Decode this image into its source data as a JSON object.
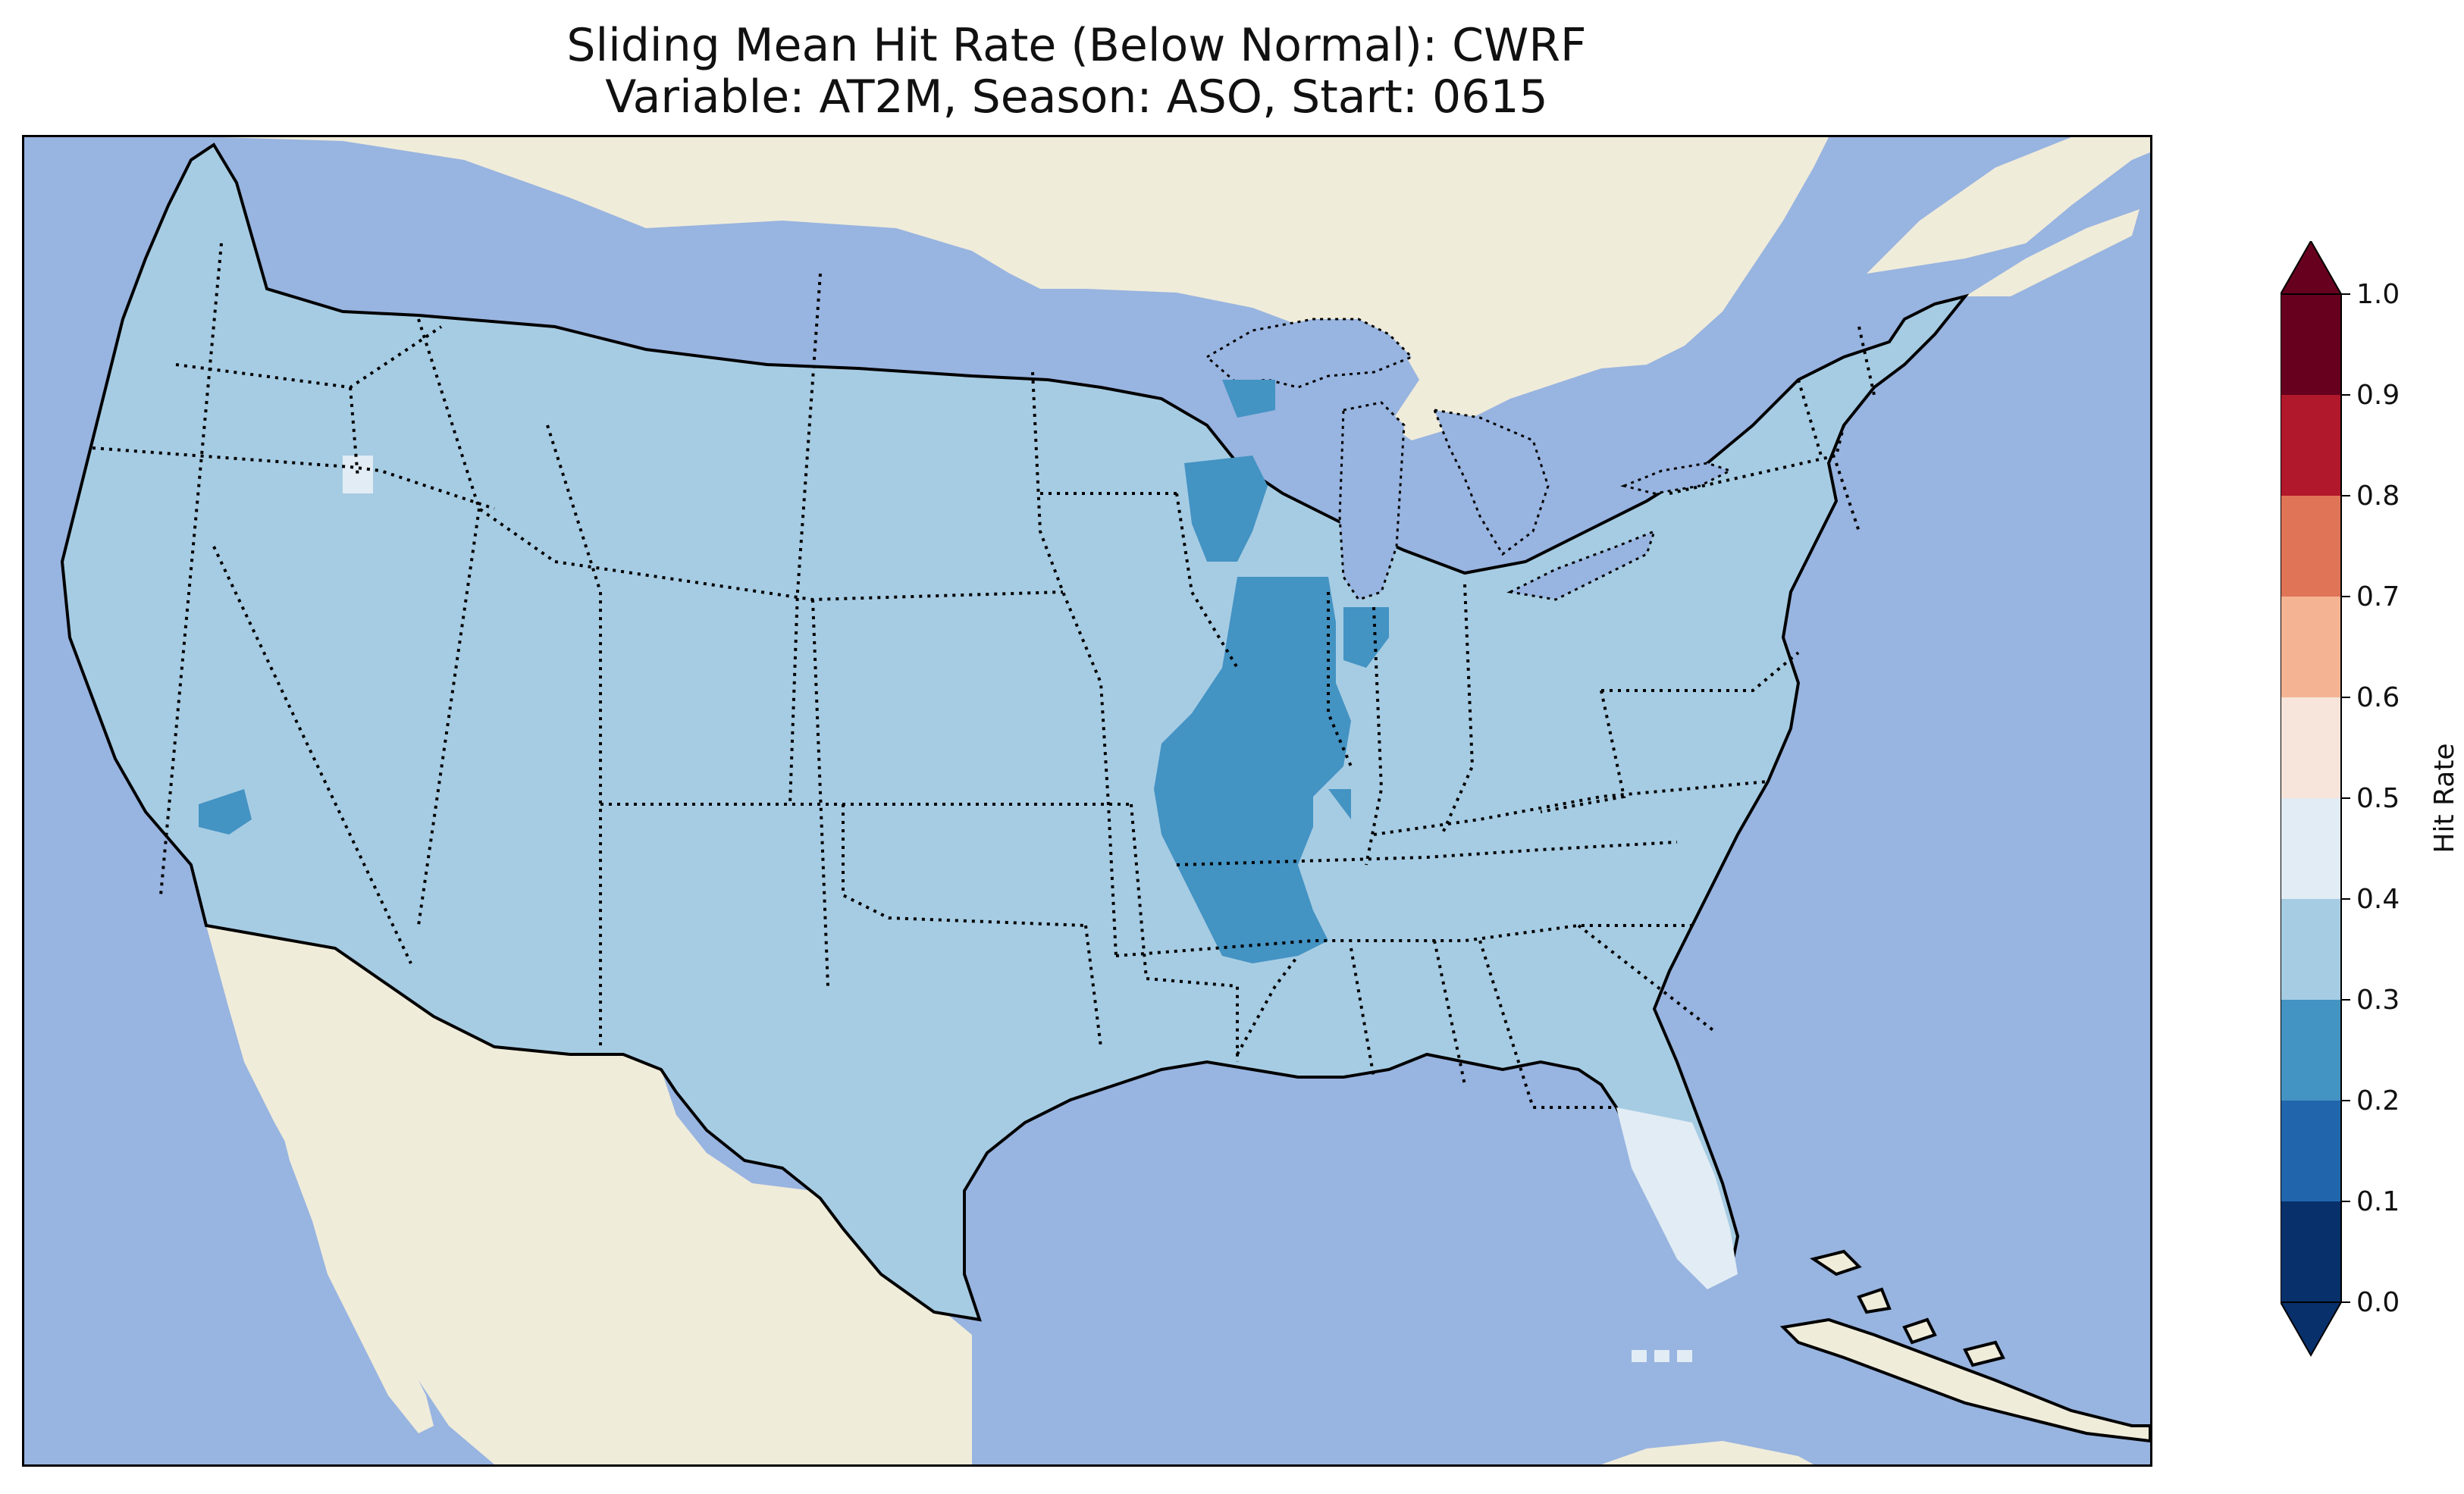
{
  "title": {
    "line1": "Sliding Mean Hit Rate (Below Normal): CWRF",
    "line2": "Variable: AT2M, Season: ASO, Start: 0615"
  },
  "colors": {
    "ocean": "#98b4e0",
    "land": "#f0ecda",
    "lakes": "#98b4e0",
    "coastline": "#000000",
    "state_borders": "#000000"
  },
  "map": {
    "region": "Contiguous United States",
    "borders": "state boundaries dotted, coastline solid",
    "dominant_class": "0.3-0.4"
  },
  "colorbar": {
    "label": "Hit Rate",
    "ticks": [
      "0.0",
      "0.1",
      "0.2",
      "0.3",
      "0.4",
      "0.5",
      "0.6",
      "0.7",
      "0.8",
      "0.9",
      "1.0"
    ],
    "bins": [
      {
        "range": [
          0.0,
          0.1
        ],
        "color": "#08306b"
      },
      {
        "range": [
          0.1,
          0.2
        ],
        "color": "#2166ac"
      },
      {
        "range": [
          0.2,
          0.3
        ],
        "color": "#4393c3"
      },
      {
        "range": [
          0.3,
          0.4
        ],
        "color": "#a6cce3"
      },
      {
        "range": [
          0.4,
          0.5
        ],
        "color": "#e1ecf4"
      },
      {
        "range": [
          0.5,
          0.6
        ],
        "color": "#f7e4da"
      },
      {
        "range": [
          0.6,
          0.7
        ],
        "color": "#f4b494"
      },
      {
        "range": [
          0.7,
          0.8
        ],
        "color": "#df7456"
      },
      {
        "range": [
          0.8,
          0.9
        ],
        "color": "#b2182b"
      },
      {
        "range": [
          0.9,
          1.0
        ],
        "color": "#67001f"
      }
    ],
    "extend": "both"
  },
  "chart_data": {
    "type": "heatmap",
    "title": "Sliding Mean Hit Rate (Below Normal): CWRF\nVariable: AT2M, Season: ASO, Start: 0615",
    "colorbar_label": "Hit Rate",
    "vmin": 0.0,
    "vmax": 1.0,
    "levels": [
      0.0,
      0.1,
      0.2,
      0.3,
      0.4,
      0.5,
      0.6,
      0.7,
      0.8,
      0.9,
      1.0
    ],
    "regions": [
      {
        "region": "Most of the contiguous United States",
        "class": "0.3-0.4"
      },
      {
        "region": "Illinois / Missouri / eastern Iowa / Arkansas border",
        "class": "0.2-0.3"
      },
      {
        "region": "Eastern Wisconsin / Green Bay area",
        "class": "0.2-0.3"
      },
      {
        "region": "Upper Peninsula of Michigan (west)",
        "class": "0.2-0.3"
      },
      {
        "region": "Western Indiana",
        "class": "0.2-0.3"
      },
      {
        "region": "Southern California / Mojave",
        "class": "0.2-0.3"
      },
      {
        "region": "Florida peninsula",
        "class": "0.4-0.5"
      },
      {
        "region": "Southern Idaho (small patch)",
        "class": "0.4-0.5"
      },
      {
        "region": "Florida Keys",
        "class": "0.4-0.5"
      }
    ]
  }
}
